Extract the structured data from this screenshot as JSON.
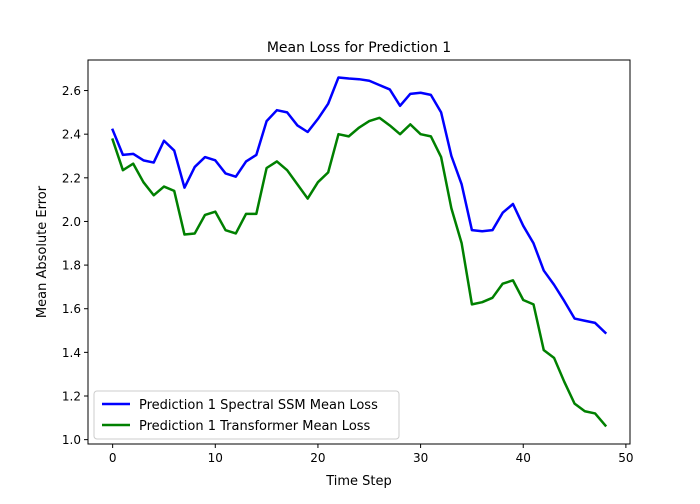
{
  "chart_data": {
    "type": "line",
    "title": "Mean Loss for Prediction 1",
    "xlabel": "Time Step",
    "ylabel": "Mean Absolute Error",
    "xlim": [
      -2.4,
      50.4
    ],
    "ylim": [
      0.98,
      2.74
    ],
    "xticks": [
      0,
      10,
      20,
      30,
      40,
      50
    ],
    "yticks": [
      1.0,
      1.2,
      1.4,
      1.6,
      1.8,
      2.0,
      2.2,
      2.4,
      2.6
    ],
    "grid": false,
    "legend_position": "lower-left",
    "x": [
      0,
      1,
      2,
      3,
      4,
      5,
      6,
      7,
      8,
      9,
      10,
      11,
      12,
      13,
      14,
      15,
      16,
      17,
      18,
      19,
      20,
      21,
      22,
      23,
      24,
      25,
      26,
      27,
      28,
      29,
      30,
      31,
      32,
      33,
      34,
      35,
      36,
      37,
      38,
      39,
      40,
      41,
      42,
      43,
      44,
      45,
      46,
      47,
      48
    ],
    "series": [
      {
        "name": "Prediction 1 Spectral SSM Mean Loss",
        "color": "#0000ff",
        "values": [
          2.42,
          2.305,
          2.31,
          2.28,
          2.27,
          2.37,
          2.325,
          2.155,
          2.25,
          2.295,
          2.28,
          2.22,
          2.205,
          2.275,
          2.305,
          2.46,
          2.51,
          2.5,
          2.44,
          2.41,
          2.47,
          2.54,
          2.66,
          2.655,
          2.652,
          2.645,
          2.625,
          2.605,
          2.53,
          2.585,
          2.59,
          2.58,
          2.5,
          2.3,
          2.17,
          1.96,
          1.955,
          1.96,
          2.04,
          2.08,
          1.98,
          1.9,
          1.775,
          1.71,
          1.635,
          1.555,
          1.545,
          1.535,
          1.49
        ]
      },
      {
        "name": "Prediction 1 Transformer Mean Loss",
        "color": "#008000",
        "values": [
          2.375,
          2.235,
          2.265,
          2.18,
          2.12,
          2.16,
          2.14,
          1.94,
          1.945,
          2.03,
          2.045,
          1.96,
          1.945,
          2.035,
          2.035,
          2.245,
          2.275,
          2.235,
          2.17,
          2.105,
          2.18,
          2.225,
          2.4,
          2.39,
          2.43,
          2.46,
          2.475,
          2.44,
          2.4,
          2.445,
          2.4,
          2.39,
          2.295,
          2.06,
          1.9,
          1.62,
          1.63,
          1.65,
          1.715,
          1.73,
          1.64,
          1.62,
          1.41,
          1.375,
          1.265,
          1.165,
          1.13,
          1.12,
          1.065
        ]
      }
    ]
  }
}
